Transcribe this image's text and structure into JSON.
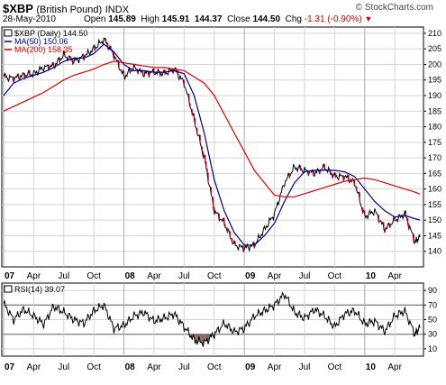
{
  "header": {
    "symbol": "$XBP",
    "name": "(British Pound)",
    "exchange": "INDX",
    "date": "28-May-2010",
    "open_label": "Open",
    "open": "145.89",
    "high_label": "High",
    "high": "145.91",
    "low": "144.37",
    "close_label": "Close",
    "close": "144.50",
    "chg_label": "Chg",
    "chg": "-1.31 (-0.90%)",
    "brand": "© StockCharts.com"
  },
  "colors": {
    "price": "#000000",
    "down_bar": "#cc0033",
    "ma50": "#000088",
    "ma200": "#dd0000",
    "grid": "#d4d4d4",
    "rsi_fill": "#806060"
  },
  "chart_data": [
    {
      "type": "line",
      "title": "$XBP (Daily) 144.50",
      "legend": [
        "$XBP (Daily) 144.50",
        "MA(50) 150.06",
        "MA(200) 158.35"
      ],
      "legend_position": "top-left",
      "grid": true,
      "ylim": [
        135,
        212
      ],
      "y_ticks": [
        140,
        145,
        150,
        155,
        160,
        165,
        170,
        175,
        180,
        185,
        190,
        195,
        200,
        205,
        210
      ],
      "x_ticks": [
        "07",
        "Apr",
        "Jul",
        "Oct",
        "08",
        "Apr",
        "Jul",
        "Oct",
        "09",
        "Apr",
        "Jul",
        "Oct",
        "10",
        "Apr"
      ],
      "x_unit": "months since Jan 2007",
      "series": [
        {
          "name": "$XBP (Daily)",
          "x": [
            0,
            1,
            2,
            3,
            4,
            5,
            6,
            7,
            8,
            9,
            10,
            11,
            12,
            13,
            14,
            15,
            16,
            17,
            18,
            19,
            20,
            21,
            22,
            23,
            24,
            25,
            26,
            27,
            28,
            29,
            30,
            31,
            32,
            33,
            34,
            35,
            36,
            37,
            38,
            39,
            40,
            41,
            41.5
          ],
          "values": [
            196,
            195.5,
            196.5,
            197,
            199,
            199.5,
            203,
            201,
            202.5,
            205,
            208,
            203,
            196,
            199,
            197,
            197.5,
            197,
            198.5,
            194,
            182,
            170,
            153,
            149,
            142,
            141,
            142,
            147,
            152,
            162,
            167,
            166,
            165,
            167,
            164,
            164,
            162,
            151,
            153,
            147,
            150,
            152,
            143,
            144.5
          ]
        },
        {
          "name": "MA(50)",
          "x": [
            0,
            1,
            2,
            3,
            4,
            5,
            6,
            7,
            8,
            9,
            10,
            11,
            12,
            13,
            14,
            15,
            16,
            17,
            18,
            19,
            20,
            21,
            22,
            23,
            24,
            25,
            26,
            27,
            28,
            29,
            30,
            31,
            32,
            33,
            34,
            35,
            36,
            37,
            38,
            39,
            40,
            41,
            41.5
          ],
          "values": [
            190,
            194,
            195.5,
            196.5,
            197.5,
            199,
            201,
            202,
            202,
            203.5,
            206.5,
            204,
            200,
            198,
            198,
            197.5,
            197.5,
            198,
            197,
            190,
            178,
            163,
            153,
            146,
            142,
            142,
            145,
            149,
            156,
            162,
            165.5,
            166,
            166,
            166,
            165.5,
            164,
            160,
            156,
            153,
            151,
            151.5,
            150.5,
            150.06
          ]
        },
        {
          "name": "MA(200)",
          "x": [
            0,
            1,
            2,
            3,
            4,
            5,
            6,
            7,
            8,
            9,
            10,
            11,
            12,
            13,
            14,
            15,
            16,
            17,
            18,
            19,
            20,
            21,
            22,
            23,
            24,
            25,
            26,
            27,
            28,
            29,
            30,
            31,
            32,
            33,
            34,
            35,
            36,
            37,
            38,
            39,
            40,
            41,
            41.5
          ],
          "values": [
            185,
            186.5,
            188,
            189.5,
            191,
            193,
            195,
            196.5,
            197.5,
            198.5,
            200,
            201,
            200.5,
            200,
            199.5,
            199,
            199,
            198.5,
            198,
            196,
            194,
            190,
            184,
            178,
            172,
            166,
            162,
            158,
            157.5,
            157.5,
            158.5,
            159.5,
            160.5,
            161.5,
            162.5,
            163,
            163.5,
            163,
            162,
            161,
            160,
            159,
            158.35
          ]
        }
      ]
    },
    {
      "type": "line",
      "title": "RSI(14) 39.07",
      "legend": [
        "RSI(14) 39.07"
      ],
      "legend_position": "top-left",
      "grid": true,
      "ylim": [
        0,
        100
      ],
      "y_ticks": [
        10,
        30,
        50,
        70,
        90
      ],
      "reference_lines": [
        30,
        70
      ],
      "x_ticks": [
        "07",
        "Apr",
        "Jul",
        "Oct",
        "08",
        "Apr",
        "Jul",
        "Oct",
        "09",
        "Apr",
        "Jul",
        "Oct",
        "10",
        "Apr"
      ],
      "series": [
        {
          "name": "RSI(14)",
          "x": [
            0,
            1,
            2,
            3,
            4,
            5,
            6,
            7,
            8,
            9,
            10,
            11,
            12,
            13,
            14,
            15,
            16,
            17,
            18,
            19,
            20,
            21,
            22,
            23,
            24,
            25,
            26,
            27,
            28,
            29,
            30,
            31,
            32,
            33,
            34,
            35,
            36,
            37,
            38,
            39,
            40,
            41,
            41.5
          ],
          "values": [
            72,
            50,
            64,
            55,
            44,
            68,
            60,
            50,
            45,
            62,
            70,
            38,
            42,
            55,
            60,
            48,
            52,
            58,
            40,
            22,
            18,
            30,
            45,
            33,
            38,
            55,
            62,
            70,
            85,
            60,
            52,
            64,
            55,
            40,
            58,
            62,
            44,
            48,
            34,
            55,
            62,
            30,
            39.07
          ]
        }
      ]
    }
  ]
}
